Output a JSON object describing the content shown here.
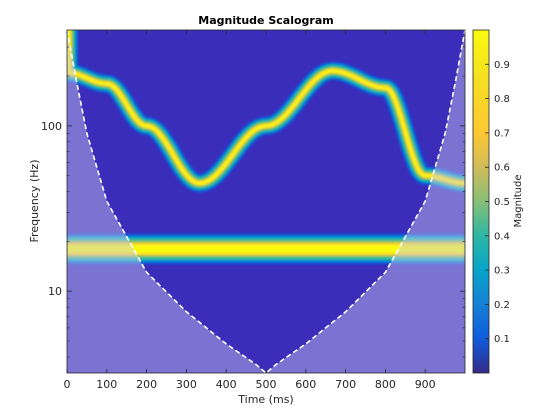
{
  "chart_data": {
    "type": "heatmap",
    "title": "Magnitude Scalogram",
    "xlabel": "Time (ms)",
    "ylabel": "Frequency (Hz)",
    "xlim": [
      0,
      1000
    ],
    "ylim": [
      3.2,
      380
    ],
    "yscale": "log",
    "x_ticks": [
      0,
      100,
      200,
      300,
      400,
      500,
      600,
      700,
      800,
      900
    ],
    "y_ticks": [
      10,
      100
    ],
    "colorbar": {
      "label": "Magnitude",
      "range": [
        0,
        1
      ],
      "ticks": [
        0.1,
        0.2,
        0.3,
        0.4,
        0.5,
        0.6,
        0.7,
        0.8,
        0.9
      ],
      "colormap": "parula"
    },
    "components": [
      {
        "name": "",
        "kind": "chirp",
        "time_ms": [
          0,
          100,
          200,
          333,
          500,
          667,
          800,
          900,
          1000
        ],
        "frequency_hz": [
          210,
          180,
          100,
          45,
          100,
          215,
          170,
          50,
          45
        ],
        "magnitude": 1.0
      },
      {
        "name": "",
        "kind": "tone",
        "frequency_hz": 18,
        "time_range_ms": [
          0,
          1000
        ],
        "magnitude": 0.95
      }
    ],
    "cone_of_influence": {
      "style": "dashed white",
      "shaded": true,
      "time_ms": [
        0,
        25,
        50,
        100,
        200,
        300,
        400,
        475,
        500,
        525,
        600,
        700,
        800,
        900,
        950,
        975,
        1000
      ],
      "frequency_hz": [
        380,
        180,
        90,
        35,
        13,
        7.5,
        4.8,
        3.6,
        3.2,
        3.6,
        4.8,
        7.5,
        13,
        35,
        90,
        180,
        380
      ]
    },
    "grid": false
  }
}
